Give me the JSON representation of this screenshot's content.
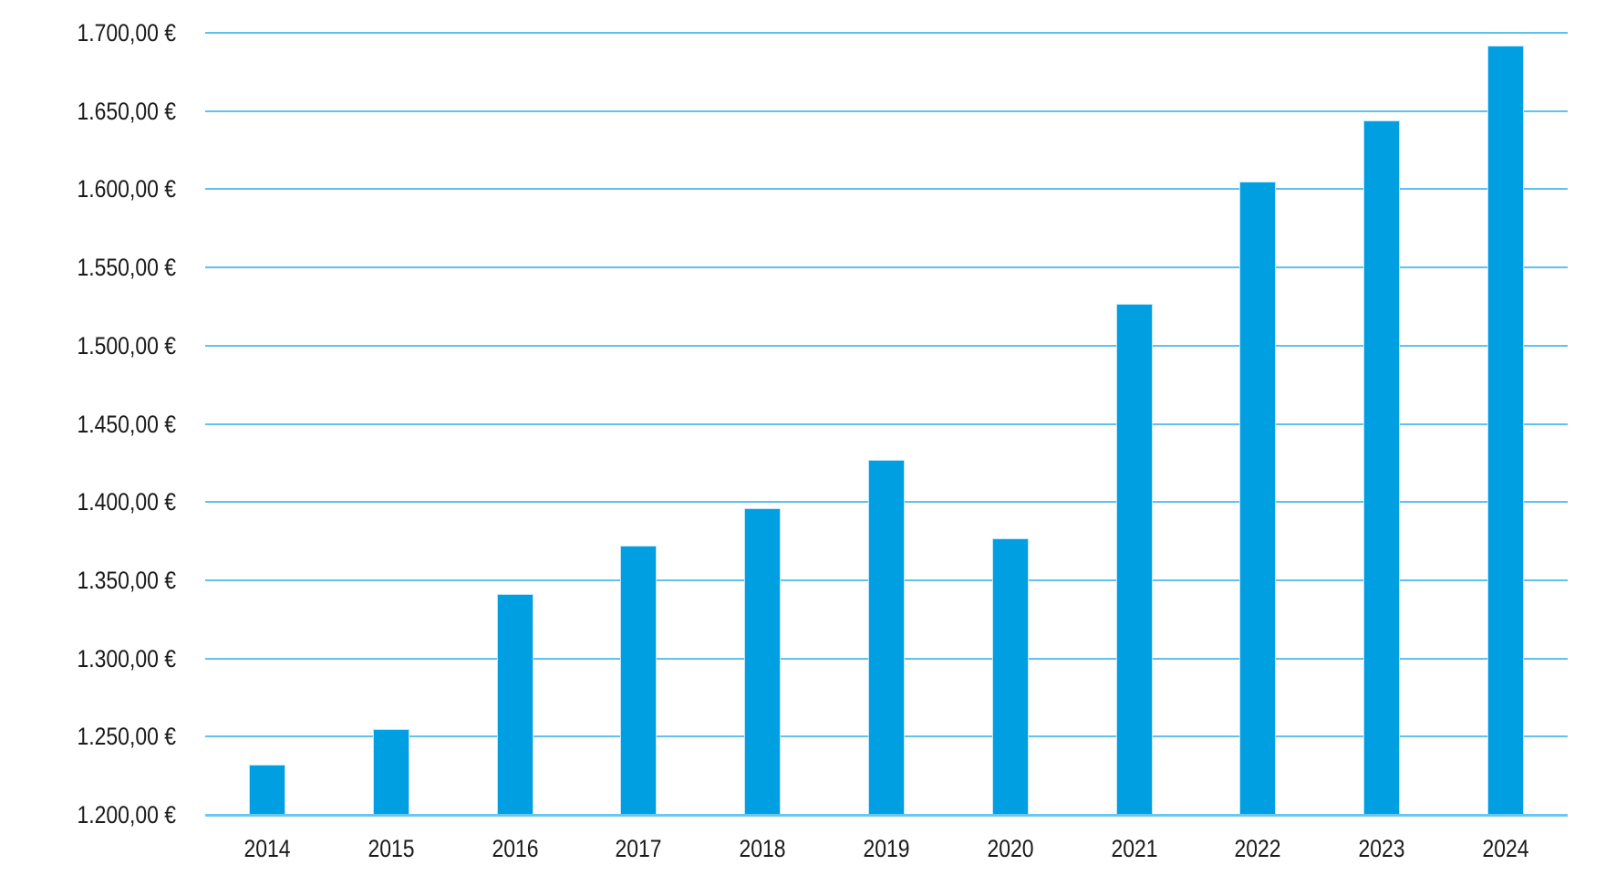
{
  "chart_data": {
    "type": "bar",
    "title": "",
    "xlabel": "",
    "ylabel": "",
    "unit": "€",
    "categories": [
      "2014",
      "2015",
      "2016",
      "2017",
      "2018",
      "2019",
      "2020",
      "2021",
      "2022",
      "2023",
      "2024"
    ],
    "values": [
      1232,
      1255,
      1341,
      1372,
      1396,
      1427,
      1377,
      1527,
      1605,
      1644,
      1692
    ],
    "ylim": [
      1200,
      1700
    ],
    "y_tick_step": 50,
    "y_ticks": [
      1200,
      1250,
      1300,
      1350,
      1400,
      1450,
      1500,
      1550,
      1600,
      1650,
      1700
    ],
    "y_tick_labels": [
      "1.200,00 €",
      "1.250,00 €",
      "1.300,00 €",
      "1.350,00 €",
      "1.400,00 €",
      "1.450,00 €",
      "1.500,00 €",
      "1.550,00 €",
      "1.600,00 €",
      "1.650,00 €",
      "1.700,00 €"
    ],
    "grid": true,
    "legend": false,
    "colors": {
      "background": "#ffffff",
      "bar_fill": "#009fe2",
      "bar_edge": "#bce4f7",
      "gridline": "#5fc2ec",
      "baseline_line": "#6cc7ee",
      "text": "#1a1a1a"
    }
  }
}
